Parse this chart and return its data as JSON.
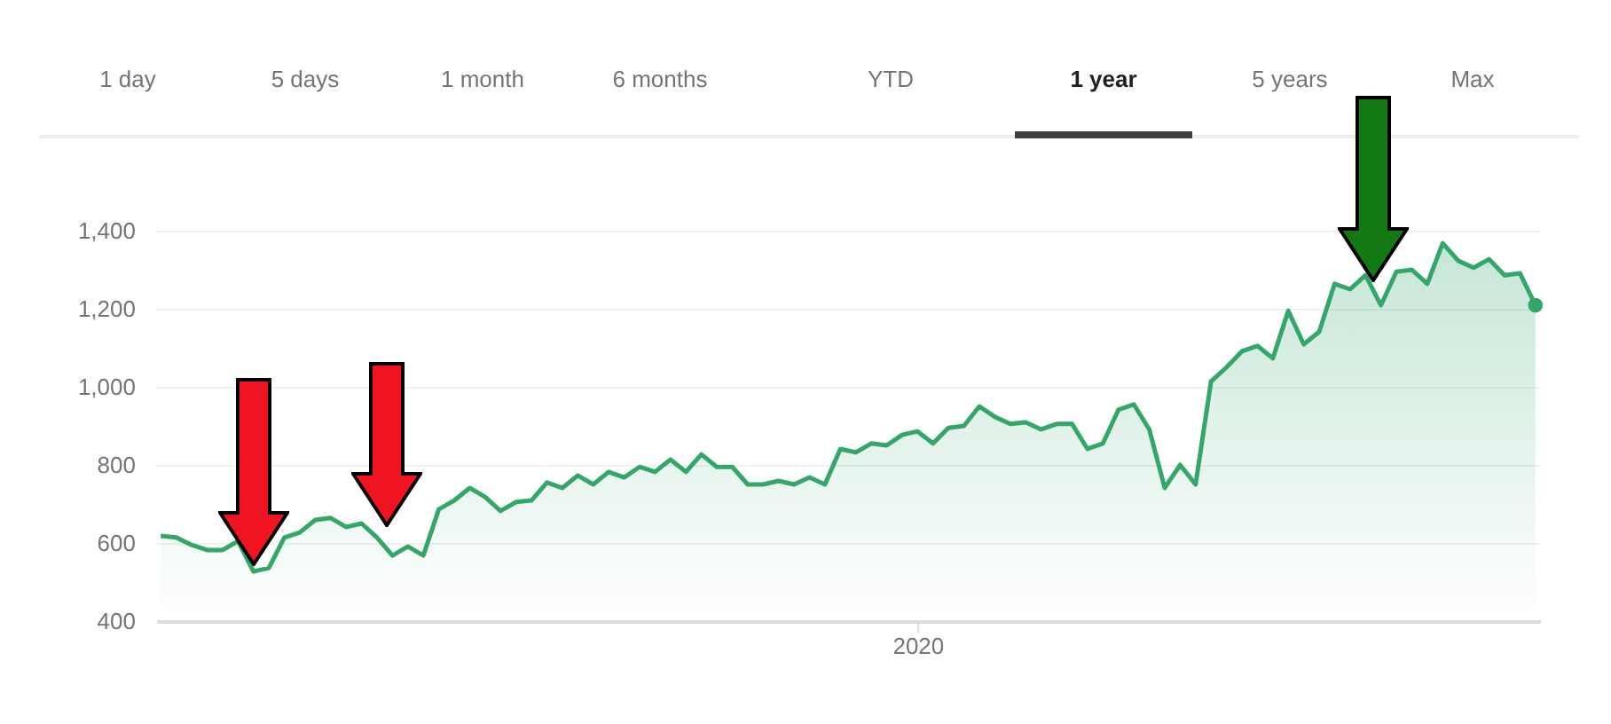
{
  "chart_data": {
    "type": "area",
    "annotations": [
      "1 day",
      "5 days",
      "1 month",
      "6 months",
      "YTD",
      "1 year",
      "5 years",
      "Max"
    ],
    "categories": [
      null,
      null,
      null,
      null,
      null,
      null,
      null,
      null,
      null,
      null,
      null,
      null,
      null,
      null,
      null,
      null,
      null,
      null,
      null,
      null,
      null,
      null,
      null,
      null,
      null,
      null,
      null,
      null,
      null,
      null,
      null,
      null,
      null,
      null,
      null,
      null,
      null,
      null,
      null,
      null,
      null,
      null,
      null,
      null,
      null,
      null,
      null,
      null,
      null,
      "2020",
      null,
      null,
      null,
      null,
      null,
      null,
      null,
      null,
      null,
      null,
      null,
      null,
      null,
      null,
      null,
      null,
      null,
      null,
      null,
      null,
      null,
      null,
      null,
      null,
      null,
      null,
      null,
      null,
      null,
      null,
      null,
      null,
      null,
      null,
      null,
      null,
      null,
      null,
      null,
      null
    ],
    "series": [
      {
        "color": "#33a66a",
        "values": [
          618,
          614,
          595,
          582,
          582,
          605,
          527,
          536,
          614,
          627,
          659,
          664,
          641,
          650,
          614,
          568,
          591,
          568,
          686,
          709,
          741,
          718,
          682,
          705,
          709,
          755,
          741,
          773,
          750,
          782,
          768,
          795,
          782,
          814,
          782,
          827,
          795,
          795,
          750,
          750,
          759,
          750,
          768,
          750,
          841,
          832,
          855,
          850,
          877,
          886,
          855,
          895,
          900,
          950,
          923,
          905,
          909,
          891,
          905,
          905,
          841,
          855,
          941,
          955,
          891,
          741,
          800,
          750,
          1014,
          1050,
          1091,
          1105,
          1073,
          1195,
          1109,
          1141,
          1264,
          1250,
          1286,
          1209,
          1295,
          1300,
          1264,
          1368,
          1323,
          1305,
          1327,
          1286,
          1291,
          1209
        ]
      }
    ],
    "ylim": [
      400,
      1400
    ],
    "yticks": [
      {
        "value": 400,
        "label": "400"
      },
      {
        "value": 600,
        "label": "600"
      },
      {
        "value": 800,
        "label": "800"
      },
      {
        "value": 1000,
        "label": "1,000"
      },
      {
        "value": 1200,
        "label": "1,200"
      },
      {
        "value": 1400,
        "label": "1,400"
      }
    ],
    "grid": "y"
  }
}
